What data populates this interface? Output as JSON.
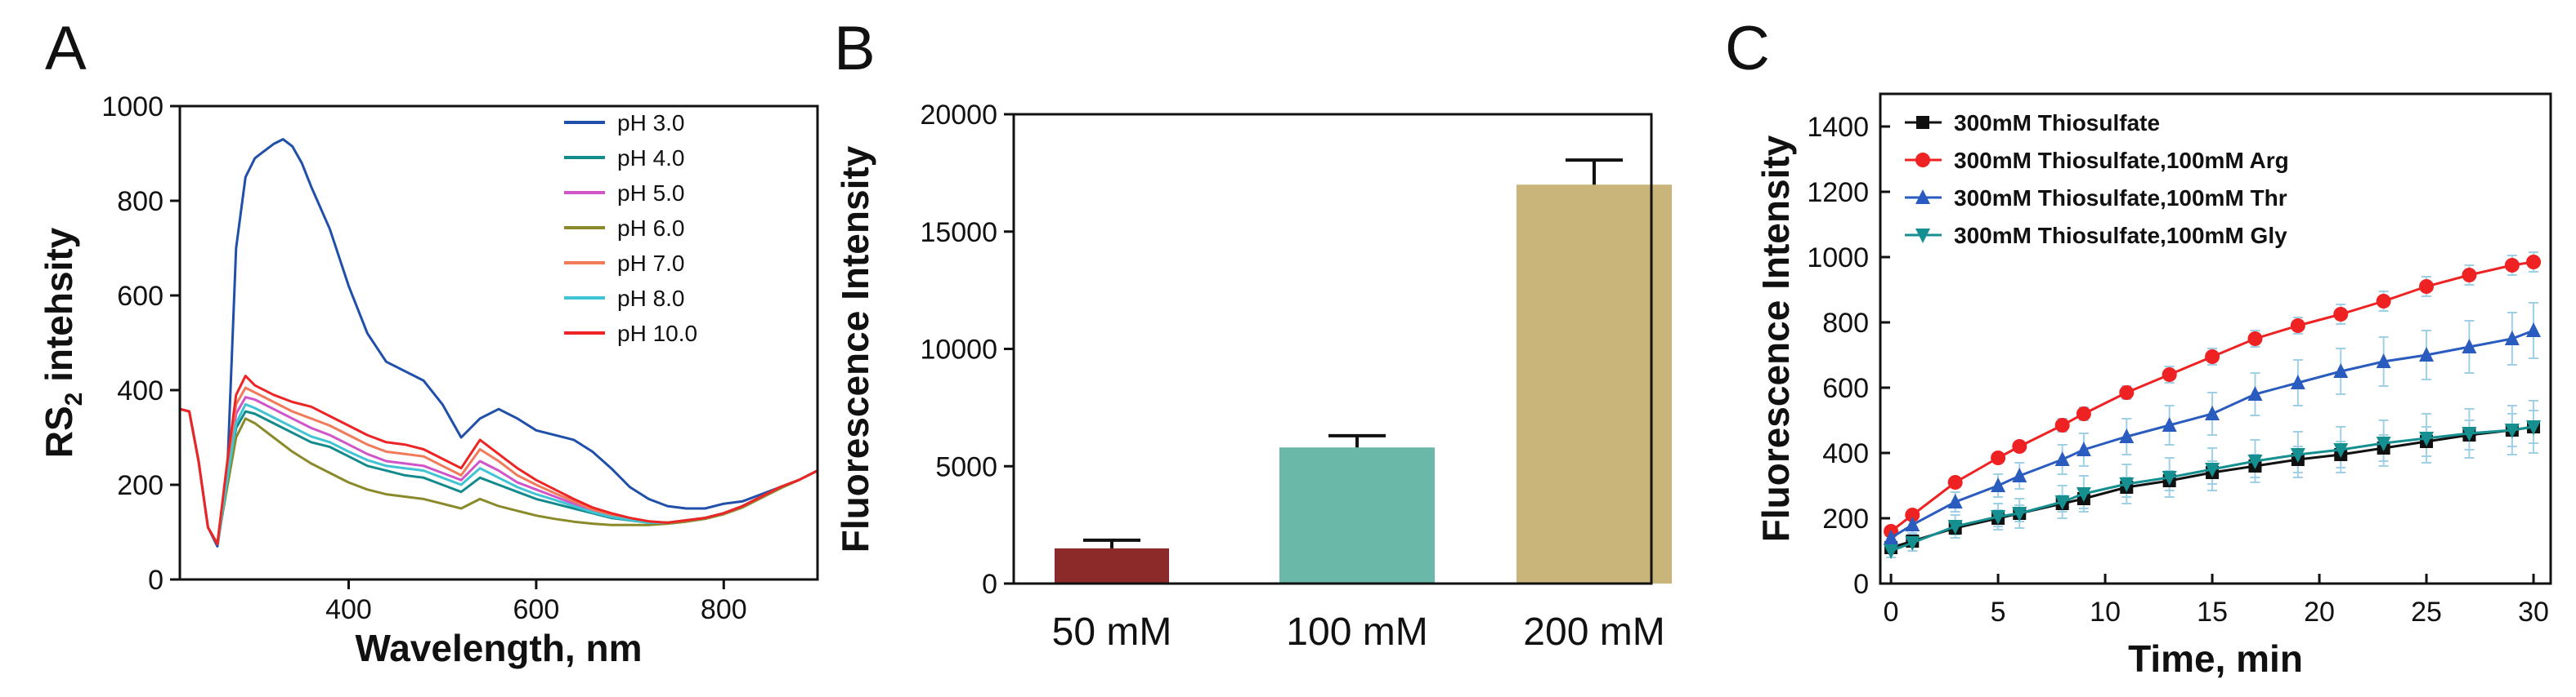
{
  "chart_data": [
    {
      "panel": "A",
      "type": "line",
      "xlabel": "Wavelength, nm",
      "ylabel": "RS",
      "ylabel_sub": "2",
      "ylabel_suffix": " intehsity",
      "xlim": [
        220,
        900
      ],
      "ylim": [
        0,
        1000
      ],
      "xticks": [
        400,
        600,
        800
      ],
      "yticks": [
        0,
        200,
        400,
        600,
        800,
        1000
      ],
      "legend_position": "top-right",
      "series": [
        {
          "name": "pH 3.0",
          "color": "#1f4fa8",
          "x": [
            220,
            230,
            240,
            250,
            260,
            270,
            280,
            290,
            300,
            310,
            320,
            330,
            340,
            350,
            360,
            380,
            400,
            420,
            440,
            460,
            480,
            500,
            520,
            540,
            560,
            580,
            600,
            620,
            640,
            660,
            680,
            700,
            720,
            740,
            760,
            780,
            800,
            820,
            840,
            860,
            880,
            900
          ],
          "y": [
            360,
            355,
            250,
            110,
            70,
            200,
            700,
            850,
            890,
            905,
            920,
            930,
            915,
            880,
            830,
            740,
            620,
            520,
            460,
            440,
            420,
            370,
            300,
            340,
            360,
            340,
            315,
            305,
            295,
            270,
            235,
            195,
            170,
            155,
            150,
            150,
            160,
            165,
            180,
            195,
            210,
            230
          ]
        },
        {
          "name": "pH 4.0",
          "color": "#138a8c",
          "x": [
            220,
            230,
            240,
            250,
            260,
            270,
            280,
            290,
            300,
            320,
            340,
            360,
            380,
            400,
            420,
            440,
            460,
            480,
            500,
            520,
            540,
            560,
            580,
            600,
            620,
            640,
            660,
            680,
            700,
            720,
            740,
            760,
            780,
            800,
            820,
            840,
            860,
            880,
            900
          ],
          "y": [
            360,
            355,
            250,
            110,
            75,
            200,
            320,
            355,
            350,
            330,
            310,
            290,
            280,
            260,
            240,
            230,
            220,
            215,
            200,
            185,
            215,
            200,
            185,
            170,
            160,
            150,
            140,
            130,
            125,
            120,
            120,
            125,
            130,
            140,
            155,
            175,
            195,
            210,
            230
          ]
        },
        {
          "name": "pH 5.0",
          "color": "#d055c8",
          "x": [
            220,
            230,
            240,
            250,
            260,
            270,
            280,
            290,
            300,
            320,
            340,
            360,
            380,
            400,
            420,
            440,
            460,
            480,
            500,
            520,
            540,
            560,
            580,
            600,
            620,
            640,
            660,
            680,
            700,
            720,
            740,
            760,
            780,
            800,
            820,
            840,
            860,
            880,
            900
          ],
          "y": [
            360,
            355,
            250,
            110,
            75,
            220,
            350,
            385,
            380,
            360,
            340,
            320,
            305,
            285,
            265,
            250,
            245,
            240,
            225,
            210,
            250,
            230,
            205,
            190,
            175,
            160,
            145,
            135,
            128,
            122,
            120,
            125,
            130,
            140,
            155,
            175,
            195,
            210,
            230
          ]
        },
        {
          "name": "pH 6.0",
          "color": "#8a8a2a",
          "x": [
            220,
            230,
            240,
            250,
            260,
            270,
            280,
            290,
            300,
            320,
            340,
            360,
            380,
            400,
            420,
            440,
            460,
            480,
            500,
            520,
            540,
            560,
            580,
            600,
            620,
            640,
            660,
            680,
            700,
            720,
            740,
            760,
            780,
            800,
            820,
            840,
            860,
            880,
            900
          ],
          "y": [
            360,
            355,
            250,
            110,
            75,
            190,
            300,
            340,
            330,
            300,
            270,
            245,
            225,
            205,
            190,
            180,
            175,
            170,
            160,
            150,
            170,
            155,
            145,
            135,
            128,
            122,
            118,
            115,
            115,
            115,
            118,
            122,
            128,
            138,
            152,
            172,
            192,
            210,
            230
          ]
        },
        {
          "name": "pH 7.0",
          "color": "#f07a5a",
          "x": [
            220,
            230,
            240,
            250,
            260,
            270,
            280,
            290,
            300,
            320,
            340,
            360,
            380,
            400,
            420,
            440,
            460,
            480,
            500,
            520,
            540,
            560,
            580,
            600,
            620,
            640,
            660,
            680,
            700,
            720,
            740,
            760,
            780,
            800,
            820,
            840,
            860,
            880,
            900
          ],
          "y": [
            360,
            355,
            250,
            110,
            75,
            230,
            370,
            405,
            395,
            375,
            355,
            340,
            325,
            305,
            285,
            270,
            265,
            260,
            240,
            220,
            275,
            250,
            220,
            200,
            182,
            165,
            148,
            137,
            128,
            122,
            120,
            125,
            130,
            140,
            155,
            175,
            195,
            210,
            230
          ]
        },
        {
          "name": "pH 8.0",
          "color": "#40c4d4",
          "x": [
            220,
            230,
            240,
            250,
            260,
            270,
            280,
            290,
            300,
            320,
            340,
            360,
            380,
            400,
            420,
            440,
            460,
            480,
            500,
            520,
            540,
            560,
            580,
            600,
            620,
            640,
            660,
            680,
            700,
            720,
            740,
            760,
            780,
            800,
            820,
            840,
            860,
            880,
            900
          ],
          "y": [
            360,
            355,
            250,
            110,
            75,
            205,
            330,
            370,
            362,
            342,
            322,
            302,
            290,
            270,
            252,
            240,
            235,
            230,
            215,
            200,
            235,
            215,
            195,
            180,
            168,
            155,
            142,
            132,
            126,
            120,
            120,
            125,
            130,
            140,
            155,
            175,
            195,
            210,
            230
          ]
        },
        {
          "name": "pH 10.0",
          "color": "#ee2424",
          "x": [
            220,
            230,
            240,
            250,
            260,
            270,
            280,
            290,
            300,
            320,
            340,
            360,
            380,
            400,
            420,
            440,
            460,
            480,
            500,
            520,
            540,
            560,
            580,
            600,
            620,
            640,
            660,
            680,
            700,
            720,
            740,
            760,
            780,
            800,
            820,
            840,
            860,
            880,
            900
          ],
          "y": [
            360,
            355,
            250,
            110,
            75,
            240,
            390,
            430,
            410,
            390,
            375,
            365,
            345,
            325,
            305,
            290,
            285,
            275,
            255,
            235,
            295,
            265,
            235,
            210,
            190,
            170,
            152,
            140,
            130,
            123,
            120,
            125,
            130,
            140,
            155,
            175,
            195,
            210,
            230
          ]
        }
      ]
    },
    {
      "panel": "B",
      "type": "bar",
      "ylabel": "Fluorescence Intensity",
      "categories": [
        "50 mM",
        "100 mM",
        "200 mM"
      ],
      "values": [
        1500,
        5800,
        17000
      ],
      "errors": [
        350,
        500,
        1050
      ],
      "colors": [
        "#8c2a2a",
        "#6ab8a8",
        "#c9b47a"
      ],
      "ylim": [
        0,
        20000
      ],
      "yticks": [
        0,
        5000,
        10000,
        15000,
        20000
      ]
    },
    {
      "panel": "C",
      "type": "line",
      "xlabel": "Time, min",
      "ylabel": "Fluorescence Intensity",
      "xlim": [
        0,
        30
      ],
      "ylim": [
        0,
        1500
      ],
      "xticks": [
        0,
        5,
        10,
        15,
        20,
        25,
        30
      ],
      "yticks": [
        0,
        200,
        400,
        600,
        800,
        1000,
        1200,
        1400
      ],
      "legend_position": "top-left",
      "series": [
        {
          "name": "300mM Thiosulfate",
          "color": "#111111",
          "marker": "square",
          "x": [
            0,
            1,
            3,
            5,
            6,
            8,
            9,
            11,
            13,
            15,
            17,
            19,
            21,
            23,
            25,
            27,
            29,
            30
          ],
          "y": [
            110,
            130,
            170,
            200,
            215,
            245,
            260,
            295,
            315,
            340,
            360,
            380,
            395,
            415,
            435,
            455,
            470,
            480
          ],
          "err": [
            15,
            15,
            20,
            25,
            25,
            25,
            30,
            30,
            30,
            35,
            35,
            40,
            40,
            40,
            45,
            45,
            50,
            50
          ]
        },
        {
          "name": "300mM Thiosulfate,100mM Arg",
          "color": "#ee2222",
          "marker": "circle",
          "x": [
            0,
            1,
            3,
            5,
            6,
            8,
            9,
            11,
            13,
            15,
            17,
            19,
            21,
            23,
            25,
            27,
            29,
            30
          ],
          "y": [
            160,
            210,
            310,
            385,
            420,
            485,
            520,
            585,
            640,
            695,
            750,
            790,
            825,
            865,
            910,
            945,
            975,
            985
          ],
          "err": [
            10,
            10,
            15,
            15,
            15,
            20,
            20,
            20,
            25,
            25,
            25,
            25,
            30,
            30,
            30,
            30,
            30,
            30
          ]
        },
        {
          "name": "300mM Thiosulfate,100mM Thr",
          "color": "#2a5bbf",
          "marker": "triangle-up",
          "x": [
            0,
            1,
            3,
            5,
            6,
            8,
            9,
            11,
            13,
            15,
            17,
            19,
            21,
            23,
            25,
            27,
            29,
            30
          ],
          "y": [
            140,
            180,
            250,
            300,
            330,
            380,
            410,
            450,
            485,
            520,
            580,
            615,
            650,
            680,
            700,
            725,
            750,
            775
          ],
          "err": [
            20,
            25,
            30,
            35,
            40,
            45,
            50,
            55,
            60,
            65,
            65,
            70,
            70,
            75,
            75,
            80,
            80,
            85
          ]
        },
        {
          "name": "300mM Thiosulfate,100mM Gly",
          "color": "#158f8f",
          "marker": "triangle-down",
          "x": [
            0,
            1,
            3,
            5,
            6,
            8,
            9,
            11,
            13,
            15,
            17,
            19,
            21,
            23,
            25,
            27,
            29,
            30
          ],
          "y": [
            100,
            125,
            175,
            205,
            215,
            250,
            275,
            305,
            325,
            350,
            375,
            395,
            410,
            430,
            445,
            460,
            470,
            480
          ],
          "err": [
            20,
            25,
            35,
            40,
            45,
            50,
            55,
            60,
            60,
            65,
            65,
            70,
            70,
            70,
            75,
            75,
            75,
            80
          ]
        }
      ]
    }
  ]
}
